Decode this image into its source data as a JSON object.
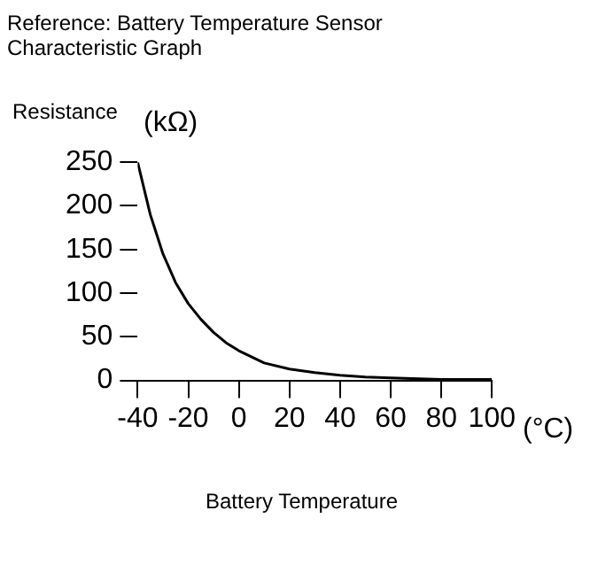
{
  "chart_data": {
    "type": "line",
    "title": "Reference: Battery Temperature Sensor Characteristic Graph",
    "ylabel": "Resistance",
    "xlabel": "Battery Temperature",
    "annotations": [
      "(kΩ)",
      "(°C)"
    ],
    "series": [
      {
        "color": "#000000",
        "x": [
          -40,
          -35,
          -30,
          -25,
          -20,
          -15,
          -10,
          -5,
          0,
          10,
          20,
          30,
          40,
          50,
          60,
          80,
          100
        ],
        "values": [
          250,
          190,
          145,
          112,
          88,
          70,
          55,
          43,
          34,
          20,
          13,
          9,
          6,
          4,
          3,
          1,
          1
        ]
      }
    ],
    "xlim": [
      -40,
      100
    ],
    "xticks": [
      -40,
      -20,
      0,
      20,
      40,
      60,
      80,
      100
    ],
    "ylim": [
      0,
      250
    ],
    "yticks": [
      0,
      50,
      100,
      150,
      200,
      250
    ],
    "grid": false,
    "marker": "none",
    "line_style": "solid"
  }
}
